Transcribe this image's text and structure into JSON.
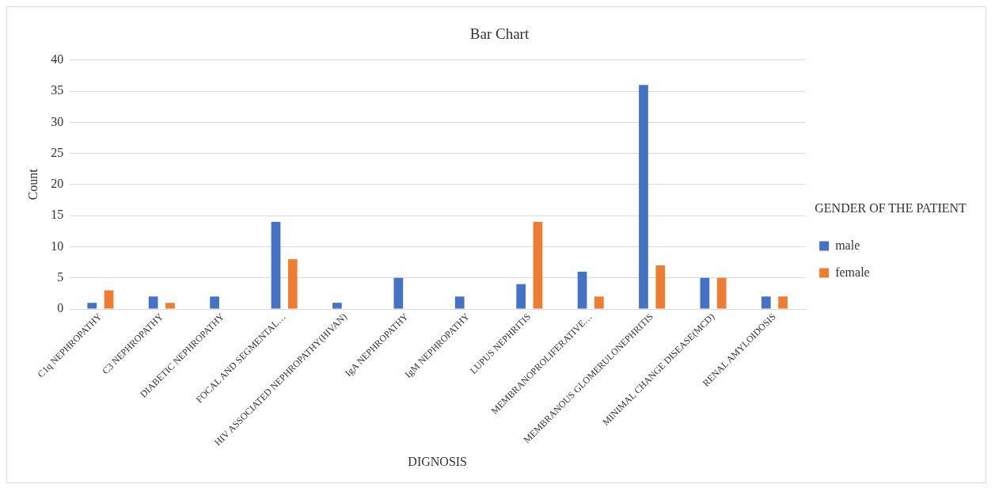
{
  "chart_data": {
    "type": "bar",
    "title": "Bar Chart",
    "xlabel": "DIGNOSIS",
    "ylabel": "Count",
    "legend_title": "GENDER OF THE PATIENT",
    "categories": [
      "C1q NEPHROPATHY",
      "C3 NEPHROPATHY",
      "DIABETIC NEPHROPATHY",
      "FOCAL AND SEGMENTAL…",
      "HIV ASSOCIATED NEPHROPATHY(HIVAN)",
      "IgA NEPHROPATHY",
      "IgM NEPHROPATHY",
      "LUPUS NEPHRITIS",
      "MEMBRANOPROLIFERATIVE…",
      "MEMBRANOUS GLOMERULONEPHRITIS",
      "MINIMAL CHANGE DISEASE(MCD)",
      "RENAL AMYLOIDOSIS"
    ],
    "series": [
      {
        "name": "male",
        "color": "#4472c4",
        "values": [
          1,
          2,
          2,
          14,
          1,
          5,
          2,
          4,
          6,
          36,
          5,
          2
        ]
      },
      {
        "name": "female",
        "color": "#ed7d31",
        "values": [
          3,
          1,
          0,
          8,
          0,
          0,
          0,
          14,
          2,
          7,
          5,
          2
        ]
      }
    ],
    "ylim": [
      0,
      40
    ],
    "yticks": [
      0,
      5,
      10,
      15,
      20,
      25,
      30,
      35,
      40
    ],
    "grid": "y",
    "legend": "right"
  }
}
